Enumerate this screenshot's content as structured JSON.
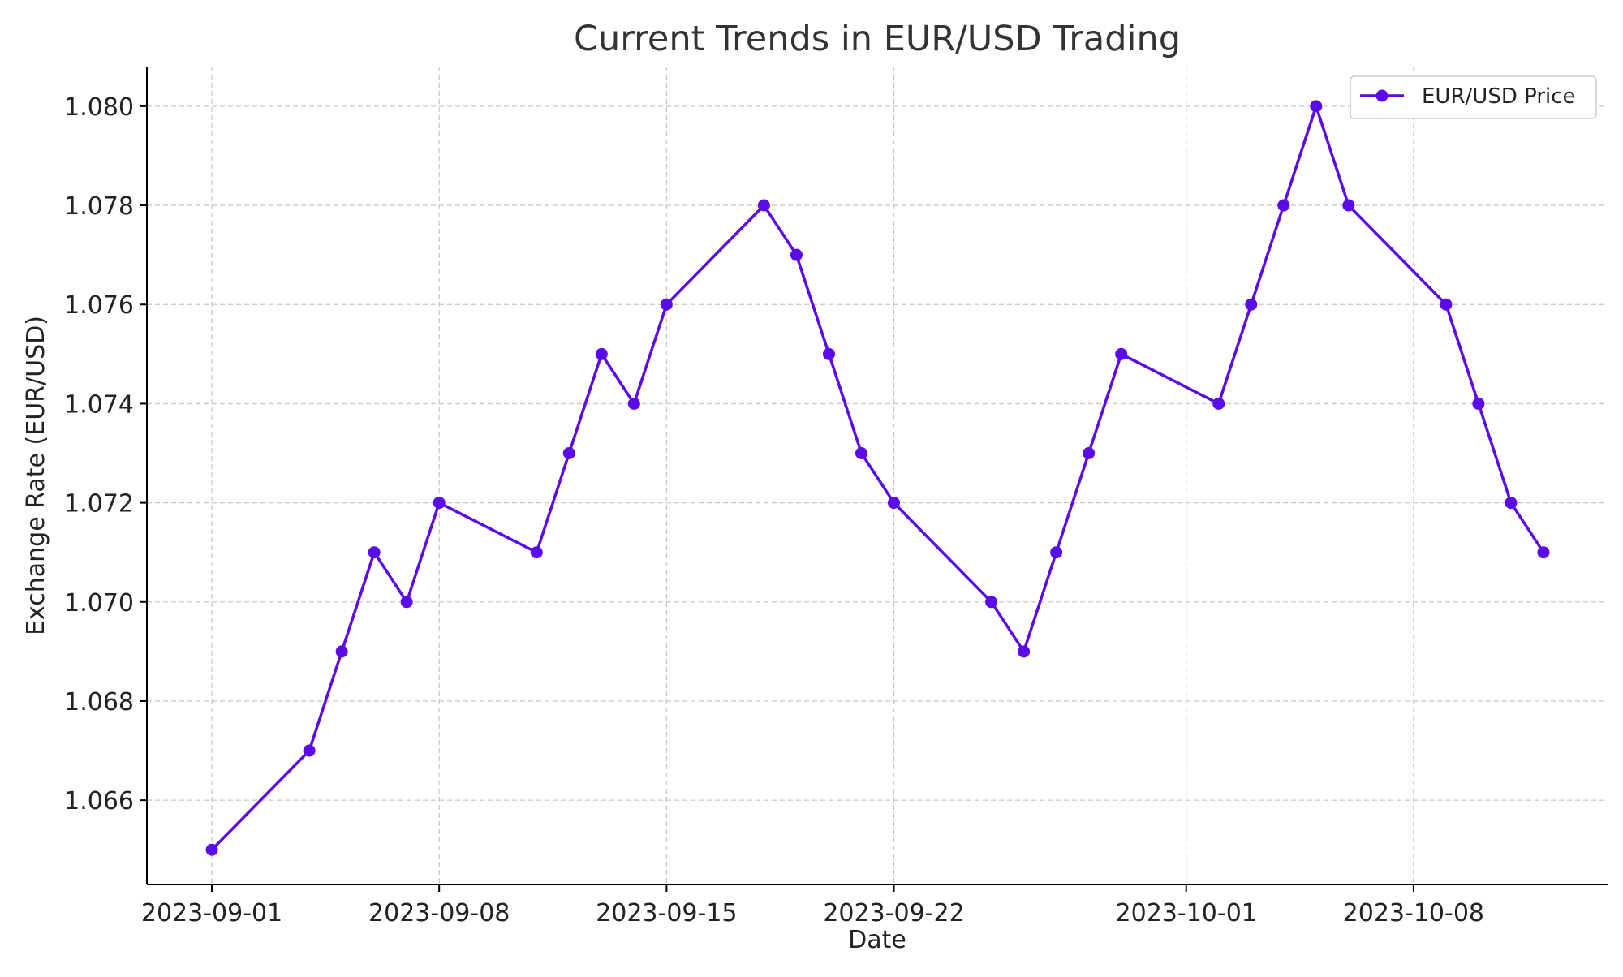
{
  "chart_data": {
    "type": "line",
    "title": "Current Trends in EUR/USD Trading",
    "xlabel": "Date",
    "ylabel": "Exchange Rate (EUR/USD)",
    "x_ticks": [
      "2023-09-01",
      "2023-09-08",
      "2023-09-15",
      "2023-09-22",
      "2023-10-01",
      "2023-10-08"
    ],
    "y_ticks": [
      "1.066",
      "1.068",
      "1.070",
      "1.072",
      "1.074",
      "1.076",
      "1.078",
      "1.080"
    ],
    "xlim": [
      "2023-08-30",
      "2023-10-14"
    ],
    "ylim": [
      1.0643,
      1.0808
    ],
    "grid": true,
    "legend_position": "top-right",
    "series": [
      {
        "name": "EUR/USD Price",
        "color": "#5b0be8",
        "marker": "circle",
        "points": [
          {
            "x": "2023-09-01",
            "y": 1.065
          },
          {
            "x": "2023-09-04",
            "y": 1.067
          },
          {
            "x": "2023-09-05",
            "y": 1.069
          },
          {
            "x": "2023-09-06",
            "y": 1.071
          },
          {
            "x": "2023-09-07",
            "y": 1.07
          },
          {
            "x": "2023-09-08",
            "y": 1.072
          },
          {
            "x": "2023-09-11",
            "y": 1.071
          },
          {
            "x": "2023-09-12",
            "y": 1.073
          },
          {
            "x": "2023-09-13",
            "y": 1.075
          },
          {
            "x": "2023-09-14",
            "y": 1.074
          },
          {
            "x": "2023-09-15",
            "y": 1.076
          },
          {
            "x": "2023-09-18",
            "y": 1.078
          },
          {
            "x": "2023-09-19",
            "y": 1.077
          },
          {
            "x": "2023-09-20",
            "y": 1.075
          },
          {
            "x": "2023-09-21",
            "y": 1.073
          },
          {
            "x": "2023-09-22",
            "y": 1.072
          },
          {
            "x": "2023-09-25",
            "y": 1.07
          },
          {
            "x": "2023-09-26",
            "y": 1.069
          },
          {
            "x": "2023-09-27",
            "y": 1.071
          },
          {
            "x": "2023-09-28",
            "y": 1.073
          },
          {
            "x": "2023-09-29",
            "y": 1.075
          },
          {
            "x": "2023-10-02",
            "y": 1.074
          },
          {
            "x": "2023-10-03",
            "y": 1.076
          },
          {
            "x": "2023-10-04",
            "y": 1.078
          },
          {
            "x": "2023-10-05",
            "y": 1.08
          },
          {
            "x": "2023-10-06",
            "y": 1.078
          },
          {
            "x": "2023-10-09",
            "y": 1.076
          },
          {
            "x": "2023-10-10",
            "y": 1.074
          },
          {
            "x": "2023-10-11",
            "y": 1.072
          },
          {
            "x": "2023-10-12",
            "y": 1.071
          }
        ]
      }
    ]
  }
}
